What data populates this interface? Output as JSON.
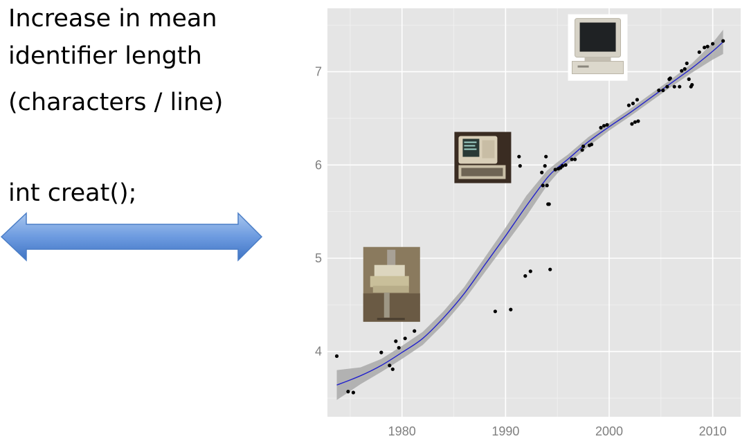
{
  "heading": {
    "line1": "Increase in mean",
    "line2": "identifier length",
    "line3": "(characters / line)"
  },
  "code_sample": "int creat();",
  "arrow": {
    "icon": "double-headed-arrow-icon",
    "color": "#5b8fd6"
  },
  "images": [
    {
      "icon": "teletype-terminal-photo",
      "anchor_x": 1979,
      "anchor_y": 4.72
    },
    {
      "icon": "crt-terminal-photo",
      "anchor_x": 1987.8,
      "anchor_y": 6.08
    },
    {
      "icon": "desktop-computer-photo",
      "anchor_x": 1998.9,
      "anchor_y": 7.26
    }
  ],
  "chart_data": {
    "type": "scatter",
    "title": "",
    "xlabel": "",
    "ylabel": "",
    "xlim": [
      1972.8,
      2012.7
    ],
    "ylim": [
      3.3,
      7.68
    ],
    "x_ticks": [
      1980,
      1990,
      2000,
      2010
    ],
    "y_ticks": [
      4,
      5,
      6,
      7
    ],
    "grid": true,
    "background": "#e5e5e5",
    "points": [
      [
        1973.7,
        3.95
      ],
      [
        1974.8,
        3.57
      ],
      [
        1975.3,
        3.56
      ],
      [
        1978.0,
        3.99
      ],
      [
        1978.8,
        3.85
      ],
      [
        1979.1,
        3.81
      ],
      [
        1979.4,
        4.11
      ],
      [
        1979.7,
        4.04
      ],
      [
        1980.3,
        4.14
      ],
      [
        1981.2,
        4.22
      ],
      [
        1989.0,
        4.43
      ],
      [
        1990.5,
        4.45
      ],
      [
        1991.3,
        6.09
      ],
      [
        1991.4,
        5.99
      ],
      [
        1991.9,
        4.81
      ],
      [
        1992.4,
        4.86
      ],
      [
        1993.5,
        5.92
      ],
      [
        1993.6,
        5.78
      ],
      [
        1993.8,
        5.99
      ],
      [
        1993.9,
        6.09
      ],
      [
        1994.0,
        5.78
      ],
      [
        1994.1,
        5.58
      ],
      [
        1994.2,
        5.58
      ],
      [
        1994.3,
        4.88
      ],
      [
        1994.8,
        5.95
      ],
      [
        1995.1,
        5.96
      ],
      [
        1995.3,
        5.97
      ],
      [
        1995.5,
        5.99
      ],
      [
        1995.8,
        6.0
      ],
      [
        1996.4,
        6.06
      ],
      [
        1996.7,
        6.06
      ],
      [
        1997.4,
        6.16
      ],
      [
        1997.5,
        6.2
      ],
      [
        1998.1,
        6.21
      ],
      [
        1998.3,
        6.22
      ],
      [
        1999.2,
        6.4
      ],
      [
        1999.5,
        6.42
      ],
      [
        1999.8,
        6.43
      ],
      [
        2001.9,
        6.64
      ],
      [
        2002.2,
        6.44
      ],
      [
        2002.3,
        6.66
      ],
      [
        2002.5,
        6.46
      ],
      [
        2002.7,
        6.7
      ],
      [
        2002.8,
        6.47
      ],
      [
        2004.8,
        6.8
      ],
      [
        2005.2,
        6.8
      ],
      [
        2005.6,
        6.84
      ],
      [
        2005.8,
        6.92
      ],
      [
        2005.9,
        6.93
      ],
      [
        2006.3,
        6.84
      ],
      [
        2006.8,
        6.84
      ],
      [
        2007.0,
        7.01
      ],
      [
        2007.3,
        7.03
      ],
      [
        2007.5,
        7.09
      ],
      [
        2007.7,
        6.92
      ],
      [
        2007.9,
        6.84
      ],
      [
        2008.0,
        6.86
      ],
      [
        2008.7,
        7.21
      ],
      [
        2009.2,
        7.26
      ],
      [
        2009.5,
        7.27
      ],
      [
        2010.0,
        7.3
      ],
      [
        2011.0,
        7.33
      ]
    ],
    "smooth": {
      "color": "#2222cc",
      "band_color": "#a9a9a9",
      "x": [
        1973.7,
        1976,
        1978,
        1980,
        1982,
        1984,
        1986,
        1988,
        1990,
        1992,
        1994,
        1995,
        1996,
        1998,
        2000,
        2002,
        2004,
        2006,
        2008,
        2010,
        2011
      ],
      "y": [
        3.64,
        3.74,
        3.85,
        3.99,
        4.14,
        4.36,
        4.62,
        4.93,
        5.24,
        5.56,
        5.86,
        5.97,
        6.06,
        6.25,
        6.41,
        6.56,
        6.72,
        6.88,
        7.04,
        7.22,
        7.32
      ],
      "lower": [
        3.48,
        3.65,
        3.78,
        3.92,
        4.07,
        4.29,
        4.55,
        4.85,
        5.15,
        5.45,
        5.78,
        5.91,
        6.01,
        6.2,
        6.37,
        6.52,
        6.68,
        6.84,
        6.99,
        7.13,
        7.19
      ],
      "upper": [
        3.8,
        3.83,
        3.92,
        4.06,
        4.21,
        4.43,
        4.69,
        5.01,
        5.33,
        5.67,
        5.94,
        6.03,
        6.11,
        6.3,
        6.45,
        6.6,
        6.76,
        6.92,
        7.09,
        7.31,
        7.45
      ]
    }
  }
}
